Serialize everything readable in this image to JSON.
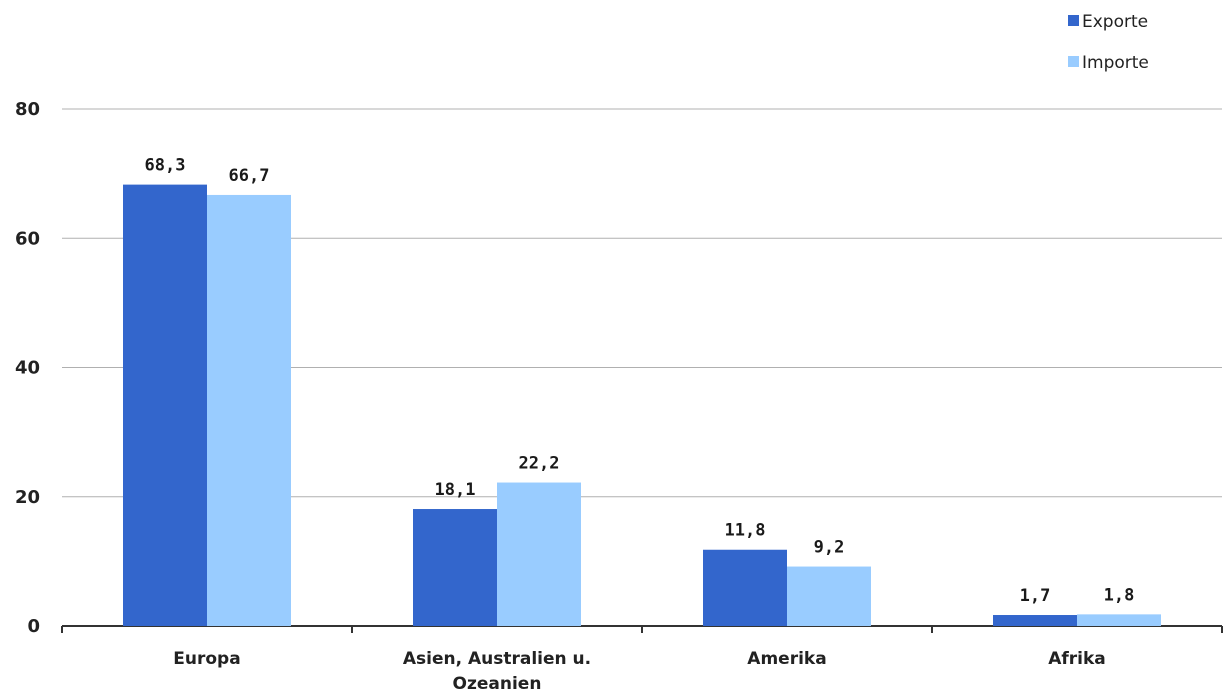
{
  "chart_data": {
    "type": "bar",
    "categories": [
      [
        "Europa"
      ],
      [
        "Asien, Australien u.",
        "Ozeanien"
      ],
      [
        "Amerika"
      ],
      [
        "Afrika"
      ]
    ],
    "series": [
      {
        "name": "Exporte",
        "values": [
          68.3,
          18.1,
          11.8,
          1.7
        ],
        "labels": [
          "68,3",
          "18,1",
          "11,8",
          "1,7"
        ],
        "color": "#3366cc"
      },
      {
        "name": "Importe",
        "values": [
          66.7,
          22.2,
          9.2,
          1.8
        ],
        "labels": [
          "66,7",
          "22,2",
          "9,2",
          "1,8"
        ],
        "color": "#99ccff"
      }
    ],
    "ylim": [
      0,
      80
    ],
    "yticks": [
      0,
      20,
      40,
      60,
      80
    ],
    "grid": true,
    "legend": "top-right",
    "title": "",
    "xlabel": "",
    "ylabel": ""
  },
  "colors": {
    "grid": "#b0b0b0",
    "axis": "#333333"
  }
}
